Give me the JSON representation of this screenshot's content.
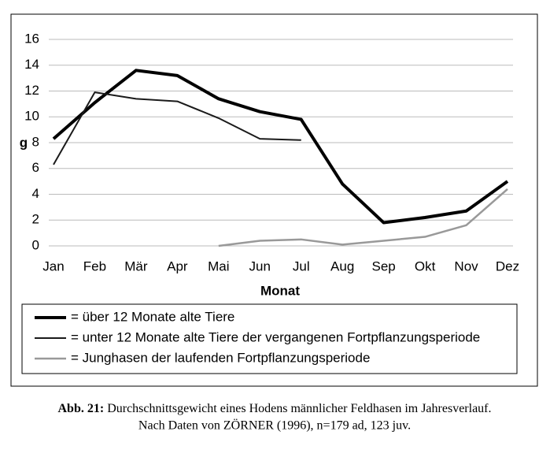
{
  "chart_data": {
    "type": "line",
    "y_label": "g",
    "x_label": "Monat",
    "categories": [
      "Jan",
      "Feb",
      "Mär",
      "Apr",
      "Mai",
      "Jun",
      "Jul",
      "Aug",
      "Sep",
      "Okt",
      "Nov",
      "Dez"
    ],
    "series": [
      {
        "name": "= über 12 Monate alte Tiere",
        "color": "#000000",
        "width": 4,
        "values": [
          8.3,
          11.1,
          13.6,
          13.2,
          11.4,
          10.4,
          9.8,
          4.8,
          1.8,
          2.2,
          2.7,
          5.0
        ]
      },
      {
        "name": "= unter 12 Monate alte Tiere der vergangenen Fortpflanzungsperiode",
        "color": "#1a1a1a",
        "width": 2,
        "values": [
          6.3,
          11.9,
          11.4,
          11.2,
          9.9,
          8.3,
          8.2,
          null,
          null,
          null,
          null,
          null
        ]
      },
      {
        "name": "= Junghasen der laufenden Fortpflanzungsperiode",
        "color": "#999999",
        "width": 2.5,
        "values": [
          null,
          null,
          null,
          null,
          0,
          0.4,
          0.5,
          0.1,
          0.4,
          0.7,
          1.6,
          4.4
        ]
      }
    ],
    "ylim": [
      0,
      16
    ],
    "yticks": [
      0,
      2,
      4,
      6,
      8,
      10,
      12,
      14,
      16
    ],
    "grid": true
  },
  "caption": {
    "label": "Abb. 21:",
    "line1": "Durchschnittsgewicht eines Hodens männlicher Feldhasen im Jahresverlauf.",
    "line2": "Nach Daten von ZÖRNER (1996), n=179 ad, 123 juv."
  }
}
